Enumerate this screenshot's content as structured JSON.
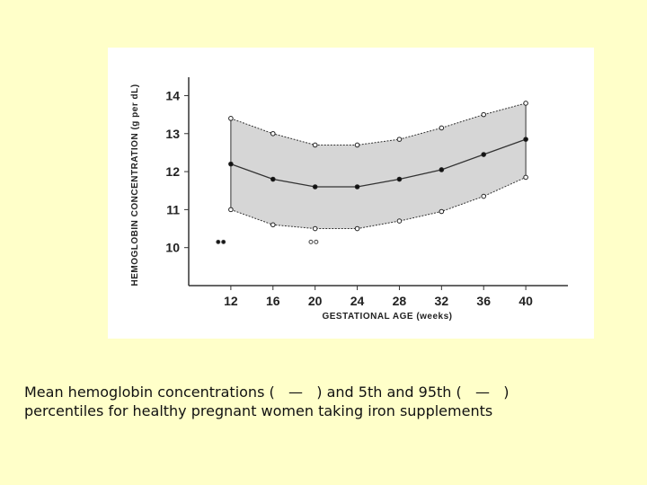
{
  "chart_data": {
    "type": "line",
    "xlabel": "GESTATIONAL AGE (weeks)",
    "ylabel": "HEMOGLOBIN CONCENTRATION (g per dL)",
    "x_ticks": [
      12,
      16,
      20,
      24,
      28,
      32,
      36,
      40
    ],
    "y_ticks": [
      10,
      11,
      12,
      13,
      14
    ],
    "xlim": [
      8,
      44
    ],
    "ylim": [
      9,
      14.2
    ],
    "grid": false,
    "band_fill": "#d6d6d6",
    "series": [
      {
        "role": "95th",
        "marker": "open",
        "x": [
          12,
          16,
          20,
          24,
          28,
          32,
          36,
          40
        ],
        "y": [
          13.4,
          13.0,
          12.7,
          12.7,
          12.85,
          13.15,
          13.5,
          13.8
        ]
      },
      {
        "role": "mean",
        "marker": "filled",
        "x": [
          12,
          16,
          20,
          24,
          28,
          32,
          36,
          40
        ],
        "y": [
          12.2,
          11.8,
          11.6,
          11.6,
          11.8,
          12.05,
          12.45,
          12.85
        ]
      },
      {
        "role": "5th",
        "marker": "open",
        "x": [
          12,
          16,
          20,
          24,
          28,
          32,
          36,
          40
        ],
        "y": [
          11.0,
          10.6,
          10.5,
          10.5,
          10.7,
          10.95,
          11.35,
          11.85
        ]
      }
    ],
    "legend_markers": [
      {
        "marker": "filled",
        "x": [
          10.8,
          11.3
        ],
        "y": [
          10.15,
          10.15
        ]
      },
      {
        "marker": "open",
        "x": [
          19.6,
          20.1
        ],
        "y": [
          10.15,
          10.15
        ]
      }
    ]
  },
  "caption": {
    "line1": "Mean hemoglobin concentrations (   —   ) and 5th and 95th (   —   )",
    "line2": "percentiles for healthy pregnant women taking iron supplements"
  }
}
